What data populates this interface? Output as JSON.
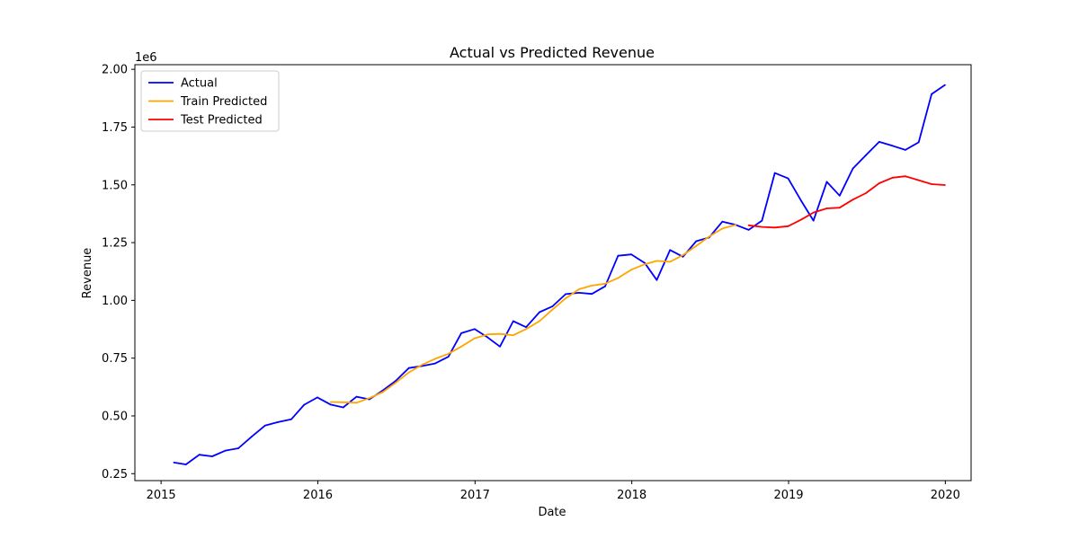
{
  "chart_data": {
    "type": "line",
    "title": "Actual vs Predicted Revenue",
    "xlabel": "Date",
    "ylabel": "Revenue",
    "y_offset_label": "1e6",
    "xlim": [
      "2014-11-01",
      "2020-03-01"
    ],
    "ylim": [
      0.22,
      2.02
    ],
    "x_ticks": [
      "2015",
      "2016",
      "2017",
      "2018",
      "2019",
      "2020"
    ],
    "y_ticks": [
      "0.25",
      "0.50",
      "0.75",
      "1.00",
      "1.25",
      "1.50",
      "1.75",
      "2.00"
    ],
    "grid": false,
    "legend_position": "upper-left",
    "series": [
      {
        "name": "Actual",
        "color": "#0000ff",
        "x": [
          "2015-01-31",
          "2015-02-28",
          "2015-03-31",
          "2015-04-30",
          "2015-05-31",
          "2015-06-30",
          "2015-07-31",
          "2015-08-31",
          "2015-09-30",
          "2015-10-31",
          "2015-11-30",
          "2015-12-31",
          "2016-01-31",
          "2016-02-29",
          "2016-03-31",
          "2016-04-30",
          "2016-05-31",
          "2016-06-30",
          "2016-07-31",
          "2016-08-31",
          "2016-09-30",
          "2016-10-31",
          "2016-11-30",
          "2016-12-31",
          "2017-01-31",
          "2017-02-28",
          "2017-03-31",
          "2017-04-30",
          "2017-05-31",
          "2017-06-30",
          "2017-07-31",
          "2017-08-31",
          "2017-09-30",
          "2017-10-31",
          "2017-11-30",
          "2017-12-31",
          "2018-01-31",
          "2018-02-28",
          "2018-03-31",
          "2018-04-30",
          "2018-05-31",
          "2018-06-30",
          "2018-07-31",
          "2018-08-31",
          "2018-09-30",
          "2018-10-31",
          "2018-11-30",
          "2018-12-31",
          "2019-01-31",
          "2019-02-28",
          "2019-03-31",
          "2019-04-30",
          "2019-05-31",
          "2019-06-30",
          "2019-07-31",
          "2019-08-31",
          "2019-09-30",
          "2019-10-31",
          "2019-11-30",
          "2019-12-31"
        ],
        "values": [
          0.298,
          0.29,
          0.332,
          0.325,
          0.35,
          0.36,
          0.41,
          0.458,
          0.473,
          0.485,
          0.548,
          0.58,
          0.549,
          0.537,
          0.583,
          0.572,
          0.61,
          0.651,
          0.707,
          0.716,
          0.727,
          0.756,
          0.858,
          0.876,
          0.839,
          0.8,
          0.91,
          0.884,
          0.949,
          0.974,
          1.027,
          1.033,
          1.028,
          1.061,
          1.193,
          1.199,
          1.162,
          1.088,
          1.218,
          1.189,
          1.256,
          1.272,
          1.341,
          1.327,
          1.305,
          1.345,
          1.551,
          1.528,
          1.429,
          1.345,
          1.513,
          1.453,
          1.571,
          1.628,
          1.686,
          1.669,
          1.651,
          1.684,
          1.893,
          1.932
        ]
      },
      {
        "name": "Train Predicted",
        "color": "#ffa500",
        "x": [
          "2016-01-31",
          "2016-02-29",
          "2016-03-31",
          "2016-04-30",
          "2016-05-31",
          "2016-06-30",
          "2016-07-31",
          "2016-08-31",
          "2016-09-30",
          "2016-10-31",
          "2016-11-30",
          "2016-12-31",
          "2017-01-31",
          "2017-02-28",
          "2017-03-31",
          "2017-04-30",
          "2017-05-31",
          "2017-06-30",
          "2017-07-31",
          "2017-08-31",
          "2017-09-30",
          "2017-10-31",
          "2017-11-30",
          "2017-12-31",
          "2018-01-31",
          "2018-02-28",
          "2018-03-31",
          "2018-04-30",
          "2018-05-31",
          "2018-06-30",
          "2018-07-31",
          "2018-08-31"
        ],
        "values": [
          0.56,
          0.559,
          0.557,
          0.577,
          0.603,
          0.643,
          0.688,
          0.722,
          0.747,
          0.769,
          0.8,
          0.836,
          0.853,
          0.855,
          0.849,
          0.876,
          0.91,
          0.96,
          1.009,
          1.048,
          1.064,
          1.072,
          1.097,
          1.133,
          1.156,
          1.171,
          1.167,
          1.196,
          1.236,
          1.276,
          1.311,
          1.327
        ]
      },
      {
        "name": "Test Predicted",
        "color": "#ff0000",
        "x": [
          "2018-09-30",
          "2018-10-31",
          "2018-11-30",
          "2018-12-31",
          "2019-01-31",
          "2019-02-28",
          "2019-03-31",
          "2019-04-30",
          "2019-05-31",
          "2019-06-30",
          "2019-07-31",
          "2019-08-31",
          "2019-09-30",
          "2019-10-31",
          "2019-11-30",
          "2019-12-31"
        ],
        "values": [
          1.325,
          1.318,
          1.315,
          1.321,
          1.35,
          1.38,
          1.398,
          1.401,
          1.436,
          1.464,
          1.507,
          1.531,
          1.537,
          1.52,
          1.503,
          1.499
        ]
      }
    ]
  }
}
